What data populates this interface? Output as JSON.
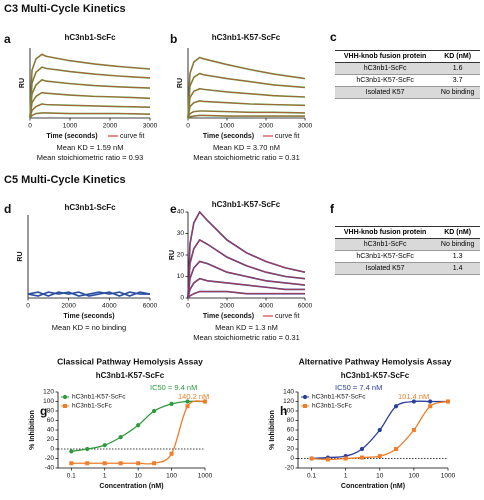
{
  "sections": [
    "C3 Multi-Cycle Kinetics",
    "C5 Multi-Cycle Kinetics"
  ],
  "chart_data": [
    {
      "type": "line",
      "panel": "a",
      "title": "hC3nb1-ScFc",
      "xlabel": "Time (seconds)",
      "ylabel": "RU",
      "x": [
        0,
        50,
        150,
        300,
        400,
        1000,
        1600,
        2200,
        3000
      ],
      "xlim": [
        0,
        3000
      ],
      "xticks": [
        0,
        1000,
        2000,
        3000
      ],
      "ylim": [
        0,
        110
      ],
      "fit": {
        "name": "curve fit",
        "color": "#d9443a"
      },
      "series": [
        {
          "color": "#5a9a3a",
          "values": [
            0,
            75,
            93,
            100,
            97,
            90,
            85,
            81,
            77
          ]
        },
        {
          "color": "#5a9a3a",
          "values": [
            0,
            55,
            72,
            80,
            78,
            73,
            69,
            66,
            63
          ]
        },
        {
          "color": "#5a9a3a",
          "values": [
            0,
            38,
            52,
            60,
            58,
            54,
            51,
            49,
            47
          ]
        },
        {
          "color": "#5a9a3a",
          "values": [
            0,
            24,
            34,
            40,
            39,
            36,
            34,
            33,
            31
          ]
        },
        {
          "color": "#5a9a3a",
          "values": [
            0,
            12,
            18,
            22,
            21,
            20,
            19,
            18,
            17
          ]
        },
        {
          "color": "#5a9a3a",
          "values": [
            0,
            4,
            7,
            8,
            8,
            7,
            7,
            7,
            6
          ]
        }
      ],
      "annotations": [
        {
          "text": "Mean KD = 1.59 nM"
        },
        {
          "text": "Mean stoichiometric ratio = 0.93"
        }
      ]
    },
    {
      "type": "line",
      "panel": "b",
      "title": "hC3nb1-K57-ScFc",
      "xlabel": "Time (seconds)",
      "ylabel": "RU",
      "x": [
        0,
        50,
        150,
        300,
        400,
        1000,
        1600,
        2200,
        3000
      ],
      "xlim": [
        0,
        3000
      ],
      "xticks": [
        0,
        1000,
        2000,
        3000
      ],
      "ylim": [
        0,
        110
      ],
      "fit": {
        "name": "curve fit",
        "color": "#d9443a"
      },
      "series": [
        {
          "color": "#5a9a3a",
          "values": [
            0,
            70,
            88,
            95,
            93,
            84,
            76,
            69,
            62
          ]
        },
        {
          "color": "#5a9a3a",
          "values": [
            0,
            50,
            64,
            70,
            68,
            62,
            57,
            52,
            48
          ]
        },
        {
          "color": "#5a9a3a",
          "values": [
            0,
            32,
            42,
            46,
            45,
            41,
            38,
            35,
            33
          ]
        },
        {
          "color": "#5a9a3a",
          "values": [
            0,
            18,
            24,
            27,
            26,
            24,
            22,
            21,
            20
          ]
        },
        {
          "color": "#5a9a3a",
          "values": [
            0,
            7,
            10,
            11,
            11,
            10,
            9,
            9,
            8
          ]
        },
        {
          "color": "#5a9a3a",
          "values": [
            0,
            2,
            3,
            4,
            4,
            3,
            3,
            3,
            3
          ]
        }
      ],
      "annotations": [
        {
          "text": "Mean KD = 3.70 nM"
        },
        {
          "text": "Mean stoichiometric ratio = 0.31"
        }
      ]
    },
    {
      "type": "line",
      "panel": "d",
      "title": "hC3nb1-ScFc",
      "xlabel": "Time (seconds)",
      "ylabel": "RU",
      "x": [
        0,
        500,
        1000,
        1500,
        2000,
        2500,
        3000,
        3500,
        4000,
        4500,
        5000,
        5500,
        6000
      ],
      "xlim": [
        0,
        6000
      ],
      "xticks": [
        0,
        2000,
        4000,
        6000
      ],
      "ylim": [
        -2,
        40
      ],
      "series": [
        {
          "color": "#2a4fa0",
          "values": [
            0,
            1,
            -1,
            1,
            0,
            1,
            -1,
            0,
            1,
            -1,
            1,
            0,
            0
          ]
        },
        {
          "color": "#2a4fa0",
          "values": [
            0,
            -1,
            1,
            0,
            1,
            -1,
            0,
            1,
            0,
            1,
            -1,
            1,
            0
          ]
        }
      ],
      "annotations": [
        {
          "text": "Mean KD = no binding"
        }
      ]
    },
    {
      "type": "line",
      "panel": "e",
      "title": "hC3nb1-K57-ScFc",
      "xlabel": "Time (seconds)",
      "ylabel": "RU",
      "x": [
        0,
        100,
        300,
        600,
        1000,
        2000,
        3000,
        4000,
        5000,
        6000
      ],
      "xlim": [
        0,
        6000
      ],
      "xticks": [
        0,
        2000,
        4000,
        6000
      ],
      "ylim": [
        0,
        40
      ],
      "yticks": [
        0,
        10,
        20,
        30,
        40
      ],
      "fit": {
        "name": "curve fit",
        "color": "#d9443a"
      },
      "series": [
        {
          "color": "#3b2f86",
          "values": [
            0,
            25,
            35,
            40,
            36,
            27,
            21,
            17,
            14,
            12
          ]
        },
        {
          "color": "#3b2f86",
          "values": [
            0,
            16,
            23,
            27,
            25,
            19,
            15,
            12,
            10,
            9
          ]
        },
        {
          "color": "#3b2f86",
          "values": [
            0,
            9,
            14,
            17,
            16,
            12,
            10,
            8,
            7,
            6
          ]
        },
        {
          "color": "#3b2f86",
          "values": [
            0,
            4,
            7,
            9,
            8,
            7,
            6,
            5,
            4,
            4
          ]
        },
        {
          "color": "#3b2f86",
          "values": [
            0,
            1,
            2,
            3,
            3,
            3,
            2,
            2,
            2,
            2
          ]
        }
      ],
      "annotations": [
        {
          "text": "Mean KD = 1.3 nM"
        },
        {
          "text": "Mean stoichiometric ratio = 0.31"
        }
      ]
    },
    {
      "type": "scatter",
      "panel": "g",
      "title": "Classical Pathway Hemolysis Assay",
      "subtitle": "hC3nb1-K57-ScFc",
      "xlabel": "Concentration (nM)",
      "ylabel": "% Inhibition",
      "xscale": "log",
      "x": [
        0.1,
        0.3,
        1,
        3,
        10,
        30,
        100,
        300,
        1000
      ],
      "xlim": [
        0.04,
        1000
      ],
      "xticks": [
        0.1,
        1,
        10,
        100,
        1000
      ],
      "ylim": [
        -40,
        120
      ],
      "yticks": [
        -40,
        -20,
        0,
        20,
        40,
        60,
        80,
        100,
        120
      ],
      "hline": 0,
      "series": [
        {
          "name": "hC3nb1-K57-ScFc",
          "color": "#2e9a3e",
          "marker": "circle",
          "values": [
            -5,
            0,
            8,
            25,
            50,
            80,
            95,
            100,
            100
          ]
        },
        {
          "name": "hC3nb1-ScFc",
          "color": "#ef7d2a",
          "marker": "square",
          "values": [
            -30,
            -30,
            -30,
            -30,
            -30,
            -30,
            -10,
            90,
            100
          ]
        }
      ],
      "annotations": [
        {
          "text": "IC50 = 9.4 nM",
          "color": "#2e9a3e"
        },
        {
          "text": "140.2 nM",
          "color": "#ef7d2a"
        }
      ]
    },
    {
      "type": "scatter",
      "panel": "h",
      "title": "Alternative Pathway Hemolysis Assay",
      "subtitle": "hC3nb1-K57-ScFc",
      "xlabel": "Concentration (nM)",
      "ylabel": "% Inhibition",
      "xscale": "log",
      "x": [
        0.1,
        0.3,
        1,
        3,
        10,
        30,
        100,
        300,
        1000
      ],
      "xlim": [
        0.04,
        1000
      ],
      "xticks": [
        0.1,
        1,
        10,
        100,
        1000
      ],
      "ylim": [
        -20,
        140
      ],
      "yticks": [
        -20,
        0,
        20,
        40,
        60,
        80,
        100,
        120,
        140
      ],
      "hline": 0,
      "series": [
        {
          "name": "hC3nb1-K57-ScFc",
          "color": "#2a3f9a",
          "marker": "circle",
          "values": [
            0,
            2,
            5,
            20,
            60,
            110,
            120,
            120,
            120
          ]
        },
        {
          "name": "hC3nb1-ScFc",
          "color": "#ef7d2a",
          "marker": "square",
          "values": [
            0,
            -2,
            0,
            2,
            5,
            20,
            60,
            110,
            120
          ]
        }
      ],
      "annotations": [
        {
          "text": "IC50 = 7.4 nM",
          "color": "#2a3f9a"
        },
        {
          "text": "101.4 nM",
          "color": "#ef7d2a"
        }
      ]
    }
  ],
  "tables": [
    {
      "panel": "c",
      "header": [
        "VHH-knob fusion protein",
        "KD (nM)"
      ],
      "rows": [
        [
          "hC3nb1-ScFc",
          "1.6"
        ],
        [
          "hC3nb1-K57-ScFc",
          "3.7"
        ],
        [
          "Isolated K57",
          "No binding"
        ]
      ]
    },
    {
      "panel": "f",
      "header": [
        "VHH-knob fusion protein",
        "KD (nM)"
      ],
      "rows": [
        [
          "hC3nb1-ScFc",
          "No binding"
        ],
        [
          "hC3nb1-K57-ScFc",
          "1.3"
        ],
        [
          "Isolated K57",
          "1.4"
        ]
      ]
    }
  ]
}
